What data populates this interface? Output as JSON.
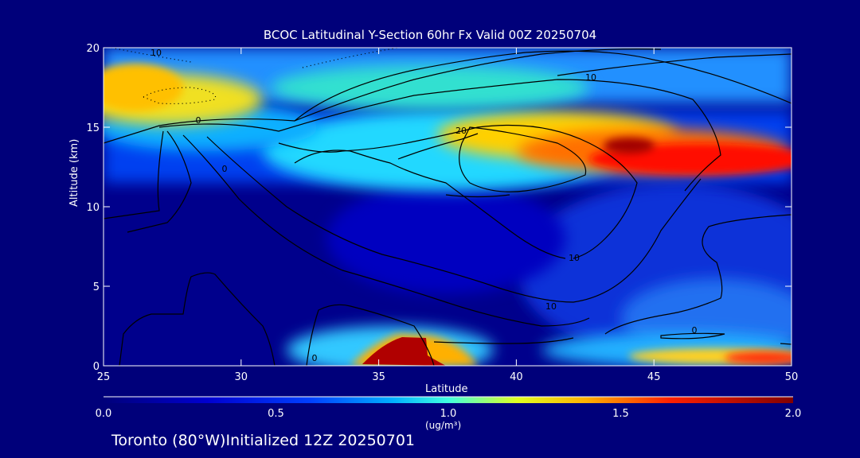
{
  "chart_data": {
    "type": "heatmap",
    "title": "BCOC Latitudinal Y-Section 60hr  Fx Valid 00Z 20250704",
    "xlabel": "Latitude",
    "ylabel": "Altitude (km)",
    "xlim": [
      25,
      50
    ],
    "ylim": [
      0,
      20
    ],
    "x_ticks": [
      "25",
      "30",
      "35",
      "40",
      "45",
      "50"
    ],
    "y_ticks": [
      "0",
      "5",
      "10",
      "15",
      "20"
    ],
    "colorbar": {
      "label": "(ug/m³)",
      "range": [
        0.0,
        2.0
      ],
      "ticks": [
        "0.0",
        "0.5",
        "1.0",
        "1.5",
        "2.0"
      ]
    },
    "contour_labels": [
      "10",
      "0",
      "0",
      "10",
      "20",
      "10",
      "10",
      "0",
      "0"
    ],
    "features": [
      {
        "desc": "upper layer band",
        "lat_range": [
          25,
          50
        ],
        "alt_range": [
          12,
          18
        ],
        "value": 1.2
      },
      {
        "desc": "maximum near",
        "lat": 44,
        "alt": 14,
        "value": 2.0
      },
      {
        "desc": "surface maximum near",
        "lat": 36,
        "alt": 1,
        "value": 2.0
      }
    ]
  },
  "footer": "Toronto (80°W)Initialized 12Z 20250701",
  "colors": {
    "background": "#00007a",
    "text": "#ffffff",
    "contour": "#000000",
    "colormap": [
      "#00008b",
      "#0000ff",
      "#00aaff",
      "#00ffff",
      "#ffff00",
      "#ff8800",
      "#ff0000",
      "#8b0000"
    ]
  }
}
